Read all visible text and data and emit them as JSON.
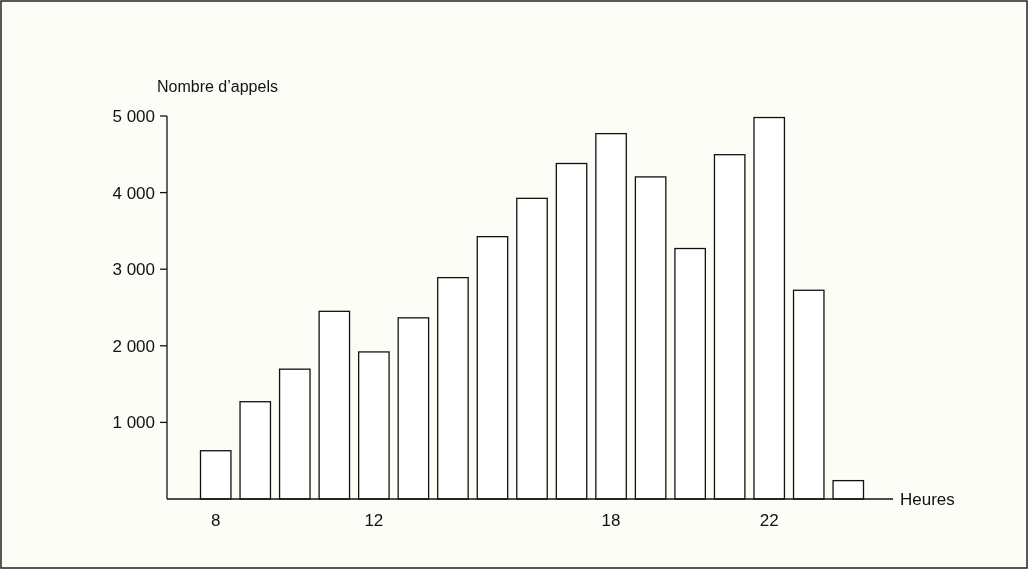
{
  "chart_data": {
    "type": "bar",
    "ylabel": "Nombre d’appels",
    "xlabel": "Heures",
    "categories": [
      "8",
      null,
      null,
      null,
      "12",
      null,
      null,
      null,
      null,
      null,
      "18",
      null,
      null,
      null,
      "22",
      null,
      null
    ],
    "values": [
      630,
      1270,
      1695,
      2450,
      1920,
      2365,
      2890,
      3425,
      3925,
      4380,
      4770,
      4205,
      3270,
      4495,
      4980,
      2725,
      240
    ],
    "color": "#ffffff",
    "ylim": [
      0,
      5000
    ],
    "yticks": [
      {
        "value": 1000,
        "label": "1 000"
      },
      {
        "value": 2000,
        "label": "2 000"
      },
      {
        "value": 3000,
        "label": "3 000"
      },
      {
        "value": 4000,
        "label": "4 000"
      },
      {
        "value": 5000,
        "label": "5 000"
      }
    ],
    "grid": false
  }
}
